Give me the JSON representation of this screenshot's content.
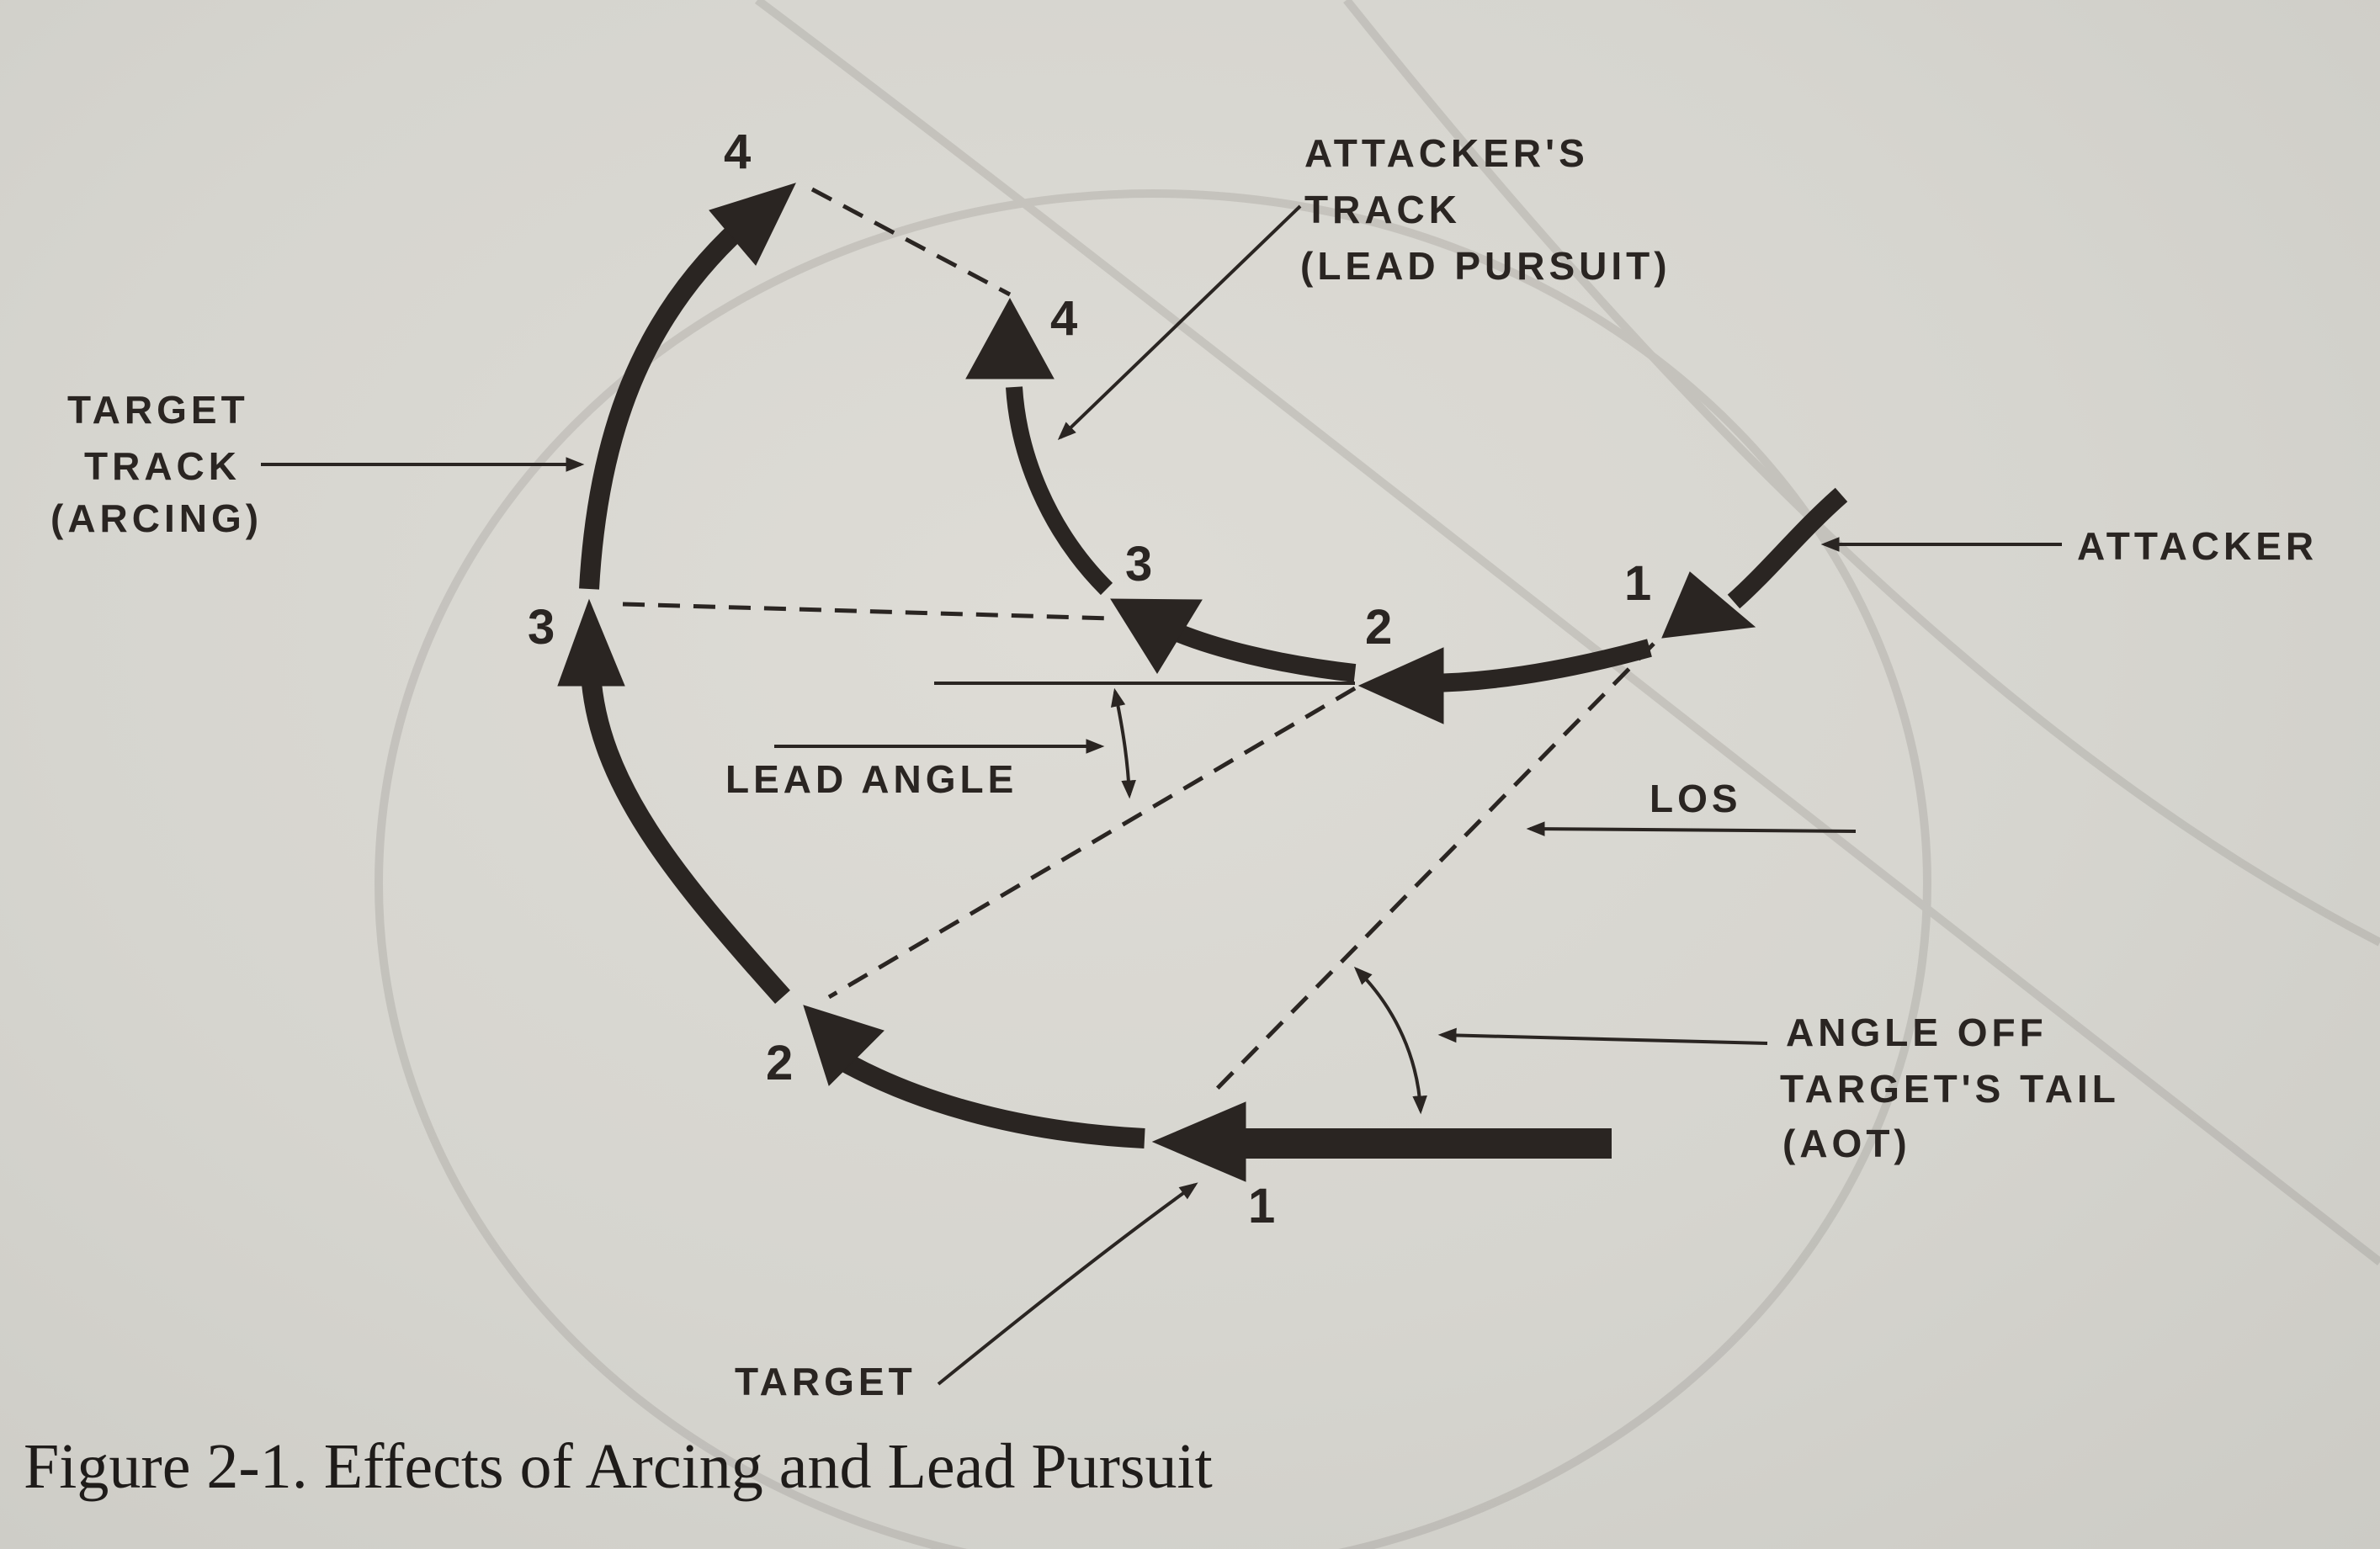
{
  "labels": {
    "attackers_track": [
      "ATTACKER'S",
      "TRACK",
      "(LEAD PURSUIT)"
    ],
    "target_track": [
      "TARGET",
      "TRACK",
      "(ARCING)"
    ],
    "attacker": "ATTACKER",
    "los": "LOS",
    "lead_angle": "LEAD ANGLE",
    "aot": [
      "ANGLE OFF",
      "TARGET'S TAIL",
      "(AOT)"
    ],
    "target": "TARGET"
  },
  "positions": {
    "target": [
      "1",
      "2",
      "3",
      "4"
    ],
    "attacker": [
      "1",
      "2",
      "3",
      "4"
    ]
  },
  "caption": "Figure 2-1. Effects of Arcing and Lead Pursuit",
  "colors": {
    "ink": "#2a2522",
    "paper": "#d6d5cf"
  }
}
